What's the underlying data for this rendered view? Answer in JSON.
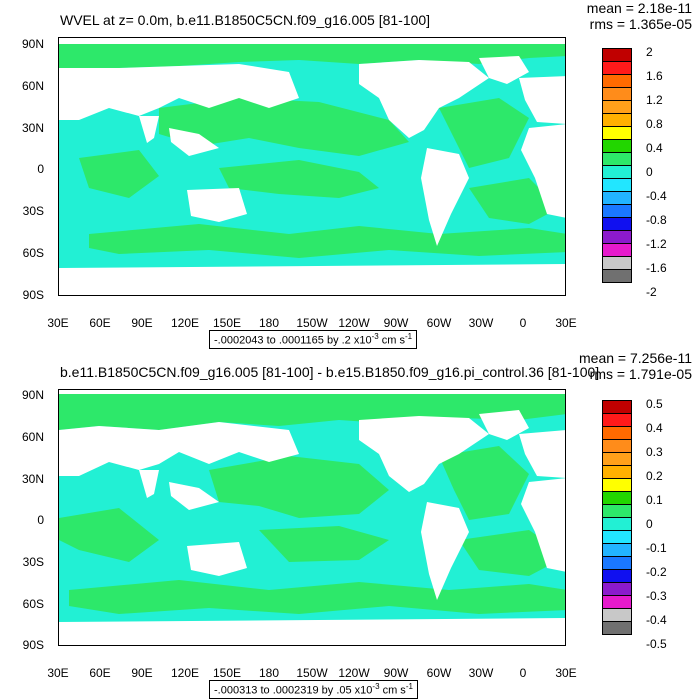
{
  "panels": [
    {
      "title": "WVEL at z=   0.0m, b.e11.B1850C5CN.f09_g16.005 [81-100]",
      "mean": "mean = 2.18e-11",
      "rms": "rms = 1.365e-05",
      "info": {
        "range": "-.0002043 to .0001165 by .2 x10",
        "exp": "-3",
        "units": " cm s",
        "unit_exp": "-1"
      },
      "colorbar_labels": [
        "2",
        "1.6",
        "1.2",
        "0.8",
        "0.4",
        "0",
        "-0.4",
        "-0.8",
        "-1.2",
        "-1.6",
        "-2"
      ]
    },
    {
      "title": "b.e11.B1850C5CN.f09_g16.005 [81-100] - b.e15.B1850.f09_g16.pi_control.36 [81-100]",
      "mean": "mean = 7.256e-11",
      "rms": "rms = 1.791e-05",
      "info": {
        "range": "-.000313 to .0002319 by .05 x10",
        "exp": "-3",
        "units": " cm s",
        "unit_exp": "-1"
      },
      "colorbar_labels": [
        "0.5",
        "0.4",
        "0.3",
        "0.2",
        "0.1",
        "0",
        "-0.1",
        "-0.2",
        "-0.3",
        "-0.4",
        "-0.5"
      ]
    }
  ],
  "lat_labels": [
    "90N",
    "60N",
    "30N",
    "0",
    "30S",
    "60S",
    "90S"
  ],
  "lon_labels": [
    "30E",
    "60E",
    "90E",
    "120E",
    "150E",
    "180",
    "150W",
    "120W",
    "90W",
    "60W",
    "30W",
    "0",
    "30E"
  ],
  "colors": {
    "ocean_positive": "#2de86a",
    "ocean_negative": "#22f0d4",
    "land": "#ffffff",
    "colorbar": [
      "#c00000",
      "#ff1a1a",
      "#ff6a00",
      "#ff8c1a",
      "#ffb000",
      "#ffff00",
      "#22d600",
      "#22e06a",
      "#22f0d4",
      "#22e6ff",
      "#22b4ff",
      "#1a78ff",
      "#1010f0",
      "#8c1acc",
      "#e61acc",
      "#c8c8c8",
      "#707070"
    ]
  }
}
